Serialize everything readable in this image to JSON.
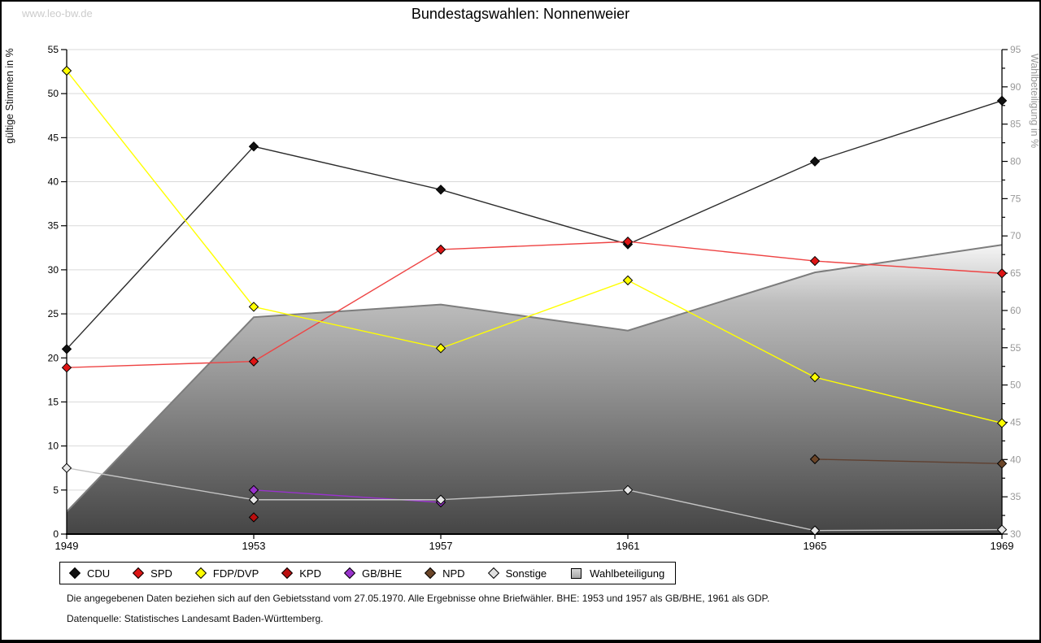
{
  "page": {
    "watermark": "www.leo-bw.de",
    "title": "Bundestagswahlen: Nonnenweier",
    "footnote1": "Die angegebenen Daten beziehen sich auf den Gebietsstand vom 27.05.1970. Alle Ergebnisse ohne Briefwähler. BHE: 1953 und 1957 als GB/BHE, 1961 als GDP.",
    "footnote2": "Datenquelle: Statistisches Landesamt Baden-Württemberg."
  },
  "chart_data": {
    "type": "line",
    "title": "Bundestagswahlen: Nonnenweier",
    "x": [
      1949,
      1953,
      1957,
      1961,
      1965,
      1969
    ],
    "left_axis": {
      "label": "gültige Stimmen in %",
      "min": 0,
      "max": 55,
      "tick_step": 5
    },
    "right_axis": {
      "label": "Wahlbeteiligung in %",
      "min": 30,
      "max": 95,
      "tick_step": 5,
      "minor_tick_step": 2.5
    },
    "grid": true,
    "legend_position": "bottom",
    "series": [
      {
        "name": "CDU",
        "type": "line",
        "axis": "left",
        "marker": "diamond",
        "color": "#111111",
        "line_color": "#2b2b2b",
        "values": [
          21.0,
          44.0,
          39.1,
          32.9,
          42.3,
          49.2
        ]
      },
      {
        "name": "SPD",
        "type": "line",
        "axis": "left",
        "marker": "diamond",
        "color": "#dd1515",
        "line_color": "#ee4444",
        "values": [
          18.9,
          19.6,
          32.3,
          33.2,
          31.0,
          29.6
        ]
      },
      {
        "name": "FDP/DVP",
        "type": "line",
        "axis": "left",
        "marker": "diamond",
        "color": "#ffff00",
        "line_color": "#ffff00",
        "values": [
          52.6,
          25.8,
          21.1,
          28.8,
          17.8,
          12.6
        ]
      },
      {
        "name": "KPD",
        "type": "line",
        "axis": "left",
        "marker": "diamond",
        "color": "#bb0f0f",
        "line_color": "#bb0f0f",
        "values": [
          null,
          1.9,
          null,
          null,
          null,
          null
        ]
      },
      {
        "name": "GB/BHE",
        "type": "line",
        "axis": "left",
        "marker": "diamond",
        "color": "#9933cc",
        "line_color": "#9933cc",
        "values": [
          null,
          5.0,
          3.6,
          null,
          null,
          null
        ]
      },
      {
        "name": "NPD",
        "type": "line",
        "axis": "left",
        "marker": "diamond",
        "color": "#6b4528",
        "line_color": "#5f4030",
        "values": [
          null,
          null,
          null,
          null,
          8.5,
          8.0
        ]
      },
      {
        "name": "Sonstige",
        "type": "line",
        "axis": "left",
        "marker": "diamond",
        "color": "#e6e6e6",
        "line_color": "#c4c4c4",
        "values": [
          7.5,
          3.9,
          3.9,
          5.0,
          0.4,
          0.5
        ]
      },
      {
        "name": "Wahlbeteiligung",
        "type": "area",
        "axis": "right",
        "marker": "square",
        "color": "#b8b8b8",
        "line_color": "#7d7d7d",
        "values": [
          33.0,
          59.1,
          60.8,
          57.3,
          65.1,
          68.8
        ]
      }
    ]
  },
  "legend": {
    "items": [
      {
        "label": "CDU",
        "marker": "diamond",
        "color": "#111111"
      },
      {
        "label": "SPD",
        "marker": "diamond",
        "color": "#dd1515"
      },
      {
        "label": "FDP/DVP",
        "marker": "diamond",
        "color": "#ffff00"
      },
      {
        "label": "KPD",
        "marker": "diamond",
        "color": "#bb0f0f"
      },
      {
        "label": "GB/BHE",
        "marker": "diamond",
        "color": "#9933cc"
      },
      {
        "label": "NPD",
        "marker": "diamond",
        "color": "#6b4528"
      },
      {
        "label": "Sonstige",
        "marker": "diamond",
        "color": "#e0e0e0"
      },
      {
        "label": "Wahlbeteiligung",
        "marker": "square",
        "color": "#b8b8b8"
      }
    ]
  },
  "colors": {
    "grid": "#d9d9d9",
    "axis": "#000000",
    "right_axis_text": "#999999",
    "watermark": "#cccccc",
    "area_gradient_top": "#f5f5f5",
    "area_gradient_bottom": "#454545"
  }
}
